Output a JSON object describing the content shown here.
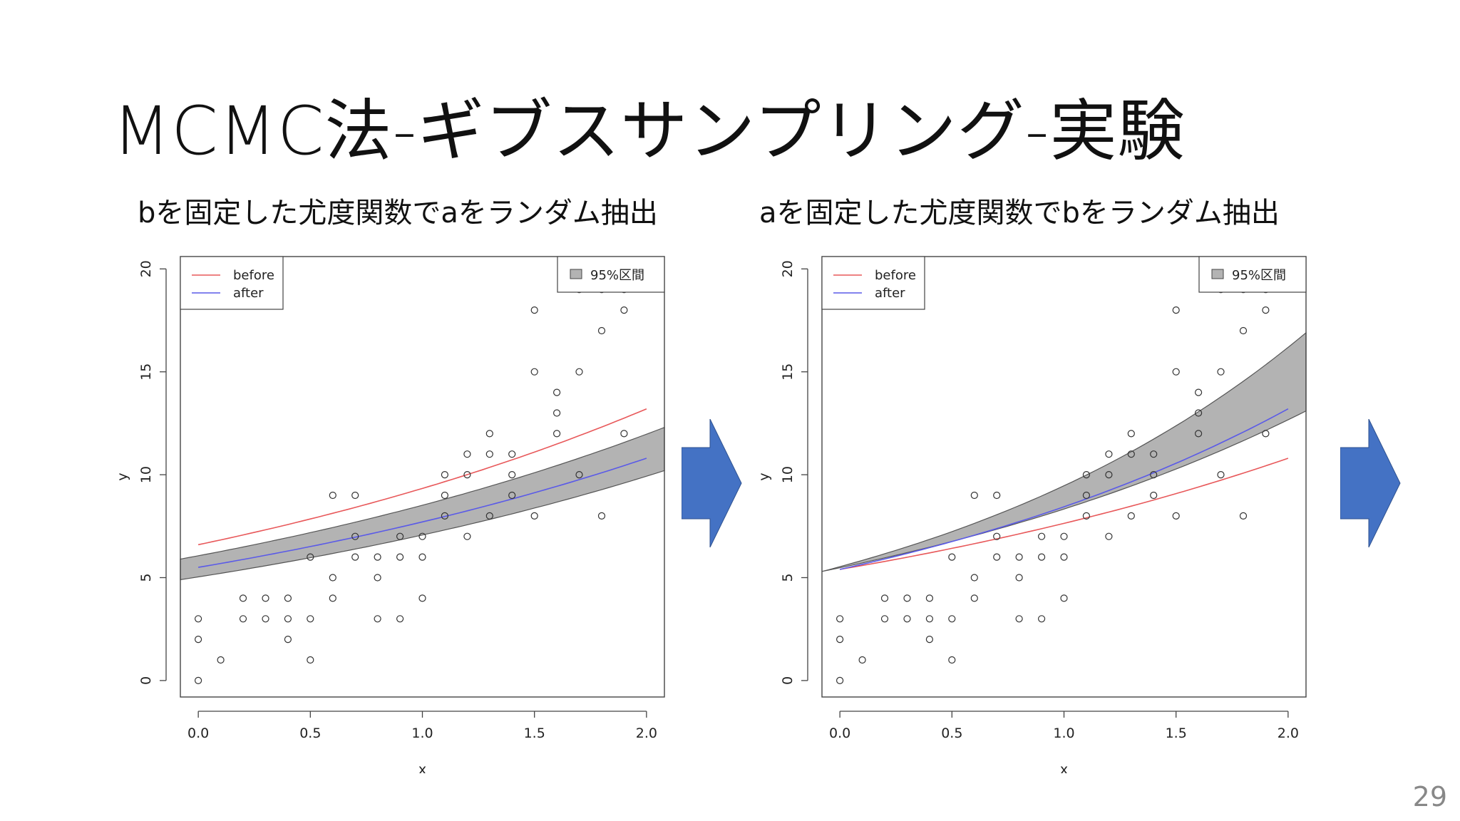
{
  "slide": {
    "title": "MCMC法-ギブスサンプリング-実験",
    "page_number": "29"
  },
  "colors": {
    "before": "#e8585a",
    "after": "#5a5ae8",
    "band": "#b3b3b3",
    "arrow": "#4472c4"
  },
  "icons": [
    "right-arrow-icon",
    "right-arrow-icon"
  ],
  "chart_data": [
    {
      "type": "scatter",
      "subtitle": "bを固定した尤度関数でaをランダム抽出",
      "xlabel": "x",
      "ylabel": "y",
      "xlim": [
        -0.08,
        2.08
      ],
      "ylim": [
        -0.8,
        20.6
      ],
      "xticks": [
        "0.0",
        "0.5",
        "1.0",
        "1.5",
        "2.0"
      ],
      "yticks": [
        "0",
        "5",
        "10",
        "15",
        "20"
      ],
      "legend": {
        "placement": "top-left",
        "entries": [
          "before",
          "after"
        ]
      },
      "band_legend": {
        "placement": "top-right",
        "label": "95%区間"
      },
      "points": [
        [
          0,
          0
        ],
        [
          0,
          2
        ],
        [
          0,
          3
        ],
        [
          0.1,
          1
        ],
        [
          0.2,
          3
        ],
        [
          0.2,
          4
        ],
        [
          0.3,
          3
        ],
        [
          0.3,
          4
        ],
        [
          0.4,
          2
        ],
        [
          0.4,
          3
        ],
        [
          0.4,
          4
        ],
        [
          0.5,
          1
        ],
        [
          0.5,
          3
        ],
        [
          0.5,
          6
        ],
        [
          0.6,
          4
        ],
        [
          0.6,
          5
        ],
        [
          0.6,
          9
        ],
        [
          0.7,
          6
        ],
        [
          0.7,
          7
        ],
        [
          0.7,
          9
        ],
        [
          0.8,
          3
        ],
        [
          0.8,
          5
        ],
        [
          0.8,
          6
        ],
        [
          0.9,
          3
        ],
        [
          0.9,
          6
        ],
        [
          0.9,
          7
        ],
        [
          1.0,
          4
        ],
        [
          1.0,
          6
        ],
        [
          1.0,
          7
        ],
        [
          1.1,
          8
        ],
        [
          1.1,
          9
        ],
        [
          1.1,
          10
        ],
        [
          1.2,
          7
        ],
        [
          1.2,
          10
        ],
        [
          1.2,
          11
        ],
        [
          1.3,
          8
        ],
        [
          1.3,
          11
        ],
        [
          1.3,
          12
        ],
        [
          1.4,
          9
        ],
        [
          1.4,
          10
        ],
        [
          1.4,
          11
        ],
        [
          1.5,
          8
        ],
        [
          1.5,
          15
        ],
        [
          1.5,
          18
        ],
        [
          1.6,
          12
        ],
        [
          1.6,
          13
        ],
        [
          1.6,
          14
        ],
        [
          1.7,
          10
        ],
        [
          1.7,
          15
        ],
        [
          1.7,
          19
        ],
        [
          1.8,
          8
        ],
        [
          1.8,
          17
        ],
        [
          1.8,
          19
        ],
        [
          1.9,
          12
        ],
        [
          1.9,
          18
        ],
        [
          1.9,
          19
        ]
      ],
      "series": [
        {
          "name": "before",
          "x": [
            0,
            2.0
          ],
          "y": [
            6.6,
            13.2
          ],
          "curve": "exp"
        },
        {
          "name": "after",
          "x": [
            0,
            2.0
          ],
          "y": [
            5.5,
            10.8
          ],
          "curve": "exp"
        }
      ],
      "band": {
        "label": "95%区間",
        "x": [
          -0.08,
          2.08
        ],
        "lower": [
          4.9,
          10.2
        ],
        "upper": [
          5.9,
          12.3
        ],
        "curve": "exp"
      }
    },
    {
      "type": "scatter",
      "subtitle": "aを固定した尤度関数でbをランダム抽出",
      "xlabel": "x",
      "ylabel": "y",
      "xlim": [
        -0.08,
        2.08
      ],
      "ylim": [
        -0.8,
        20.6
      ],
      "xticks": [
        "0.0",
        "0.5",
        "1.0",
        "1.5",
        "2.0"
      ],
      "yticks": [
        "0",
        "5",
        "10",
        "15",
        "20"
      ],
      "legend": {
        "placement": "top-left",
        "entries": [
          "before",
          "after"
        ]
      },
      "band_legend": {
        "placement": "top-right",
        "label": "95%区間"
      },
      "points": [
        [
          0,
          0
        ],
        [
          0,
          2
        ],
        [
          0,
          3
        ],
        [
          0.1,
          1
        ],
        [
          0.2,
          3
        ],
        [
          0.2,
          4
        ],
        [
          0.3,
          3
        ],
        [
          0.3,
          4
        ],
        [
          0.4,
          2
        ],
        [
          0.4,
          3
        ],
        [
          0.4,
          4
        ],
        [
          0.5,
          1
        ],
        [
          0.5,
          3
        ],
        [
          0.5,
          6
        ],
        [
          0.6,
          4
        ],
        [
          0.6,
          5
        ],
        [
          0.6,
          9
        ],
        [
          0.7,
          6
        ],
        [
          0.7,
          7
        ],
        [
          0.7,
          9
        ],
        [
          0.8,
          3
        ],
        [
          0.8,
          5
        ],
        [
          0.8,
          6
        ],
        [
          0.9,
          3
        ],
        [
          0.9,
          6
        ],
        [
          0.9,
          7
        ],
        [
          1.0,
          4
        ],
        [
          1.0,
          6
        ],
        [
          1.0,
          7
        ],
        [
          1.1,
          8
        ],
        [
          1.1,
          9
        ],
        [
          1.1,
          10
        ],
        [
          1.2,
          7
        ],
        [
          1.2,
          10
        ],
        [
          1.2,
          11
        ],
        [
          1.3,
          8
        ],
        [
          1.3,
          11
        ],
        [
          1.3,
          12
        ],
        [
          1.4,
          9
        ],
        [
          1.4,
          10
        ],
        [
          1.4,
          11
        ],
        [
          1.5,
          8
        ],
        [
          1.5,
          15
        ],
        [
          1.5,
          18
        ],
        [
          1.6,
          12
        ],
        [
          1.6,
          13
        ],
        [
          1.6,
          14
        ],
        [
          1.7,
          10
        ],
        [
          1.7,
          15
        ],
        [
          1.7,
          19
        ],
        [
          1.8,
          8
        ],
        [
          1.8,
          17
        ],
        [
          1.8,
          19
        ],
        [
          1.9,
          12
        ],
        [
          1.9,
          18
        ],
        [
          1.9,
          19
        ]
      ],
      "series": [
        {
          "name": "before",
          "x": [
            0,
            2.0
          ],
          "y": [
            5.4,
            10.8
          ],
          "curve": "exp"
        },
        {
          "name": "after",
          "x": [
            0,
            2.0
          ],
          "y": [
            5.4,
            13.2
          ],
          "curve": "exp"
        }
      ],
      "band": {
        "label": "95%区間",
        "x": [
          -0.08,
          2.08
        ],
        "lower": [
          5.3,
          13.1
        ],
        "upper": [
          5.3,
          16.9
        ],
        "curve": "exp"
      }
    }
  ]
}
